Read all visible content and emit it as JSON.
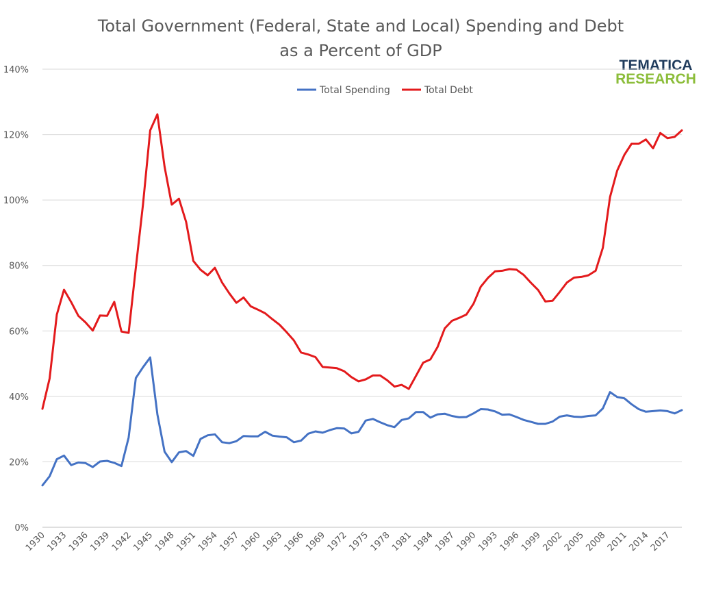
{
  "chart_data": {
    "type": "line",
    "title_line1": "Total Government (Federal, State and Local) Spending and Debt",
    "title_line2": "as a Percent of GDP",
    "ylim": [
      0,
      140
    ],
    "ytick_step": 20,
    "ytick_labels": [
      "0%",
      "20%",
      "40%",
      "60%",
      "80%",
      "100%",
      "120%",
      "140%"
    ],
    "xlim": [
      1930,
      2019
    ],
    "xtick_labels": [
      "1930",
      "1933",
      "1936",
      "1939",
      "1942",
      "1945",
      "1948",
      "1951",
      "1954",
      "1957",
      "1960",
      "1963",
      "1966",
      "1969",
      "1972",
      "1975",
      "1978",
      "1981",
      "1984",
      "1987",
      "1990",
      "1993",
      "1996",
      "1999",
      "2002",
      "2005",
      "2008",
      "2011",
      "2014",
      "2017"
    ],
    "grid": "horizontal",
    "legend_position": "top-center",
    "logo": {
      "line1": "TEMATICA",
      "line2": "RESEARCH"
    },
    "x": [
      1930,
      1931,
      1932,
      1933,
      1934,
      1935,
      1936,
      1937,
      1938,
      1939,
      1940,
      1941,
      1942,
      1943,
      1944,
      1945,
      1946,
      1947,
      1948,
      1949,
      1950,
      1951,
      1952,
      1953,
      1954,
      1955,
      1956,
      1957,
      1958,
      1959,
      1960,
      1961,
      1962,
      1963,
      1964,
      1965,
      1966,
      1967,
      1968,
      1969,
      1970,
      1971,
      1972,
      1973,
      1974,
      1975,
      1976,
      1977,
      1978,
      1979,
      1980,
      1981,
      1982,
      1983,
      1984,
      1985,
      1986,
      1987,
      1988,
      1989,
      1990,
      1991,
      1992,
      1993,
      1994,
      1995,
      1996,
      1997,
      1998,
      1999,
      2000,
      2001,
      2002,
      2003,
      2004,
      2005,
      2006,
      2007,
      2008,
      2009,
      2010,
      2011,
      2012,
      2013,
      2014,
      2015,
      2016,
      2017,
      2018,
      2019
    ],
    "series": [
      {
        "name": "Total Spending",
        "color": "#4472c4",
        "values": [
          12.8,
          15.6,
          20.8,
          21.9,
          19.0,
          19.8,
          19.6,
          18.4,
          20.1,
          20.3,
          19.7,
          18.7,
          27.4,
          45.6,
          48.9,
          51.9,
          34.5,
          23.1,
          19.9,
          22.9,
          23.3,
          21.8,
          27.0,
          28.1,
          28.4,
          26.0,
          25.7,
          26.3,
          27.9,
          27.8,
          27.8,
          29.2,
          28.0,
          27.7,
          27.5,
          26.0,
          26.5,
          28.6,
          29.3,
          28.9,
          29.7,
          30.3,
          30.2,
          28.7,
          29.2,
          32.6,
          33.1,
          32.1,
          31.2,
          30.6,
          32.8,
          33.3,
          35.2,
          35.2,
          33.5,
          34.5,
          34.7,
          34.0,
          33.6,
          33.7,
          34.8,
          36.1,
          36.0,
          35.4,
          34.4,
          34.5,
          33.7,
          32.8,
          32.2,
          31.6,
          31.6,
          32.3,
          33.8,
          34.2,
          33.8,
          33.7,
          34.0,
          34.2,
          36.3,
          41.3,
          39.8,
          39.4,
          37.6,
          36.1,
          35.3,
          35.5,
          35.7,
          35.5,
          34.8,
          35.8
        ]
      },
      {
        "name": "Total Debt",
        "color": "#e31a1c",
        "values": [
          36.2,
          45.5,
          65.0,
          72.6,
          68.8,
          64.6,
          62.6,
          60.1,
          64.7,
          64.6,
          68.9,
          59.8,
          59.4,
          79.3,
          98.7,
          121.3,
          126.2,
          110.2,
          98.6,
          100.4,
          93.3,
          81.4,
          78.7,
          77.0,
          79.3,
          74.8,
          71.5,
          68.6,
          70.2,
          67.5,
          66.5,
          65.4,
          63.6,
          61.9,
          59.6,
          57.1,
          53.4,
          52.8,
          52.0,
          49.0,
          48.8,
          48.6,
          47.7,
          45.9,
          44.6,
          45.2,
          46.4,
          46.4,
          44.9,
          43.0,
          43.5,
          42.3,
          46.3,
          50.3,
          51.3,
          55.1,
          60.8,
          63.1,
          64.0,
          65.0,
          68.3,
          73.5,
          76.2,
          78.2,
          78.4,
          78.9,
          78.7,
          77.1,
          74.7,
          72.5,
          69.0,
          69.2,
          71.9,
          74.8,
          76.3,
          76.5,
          77.0,
          78.4,
          85.4,
          100.9,
          109.0,
          113.8,
          117.2,
          117.2,
          118.5,
          115.8,
          120.5,
          118.9,
          119.3,
          121.3
        ]
      }
    ]
  }
}
